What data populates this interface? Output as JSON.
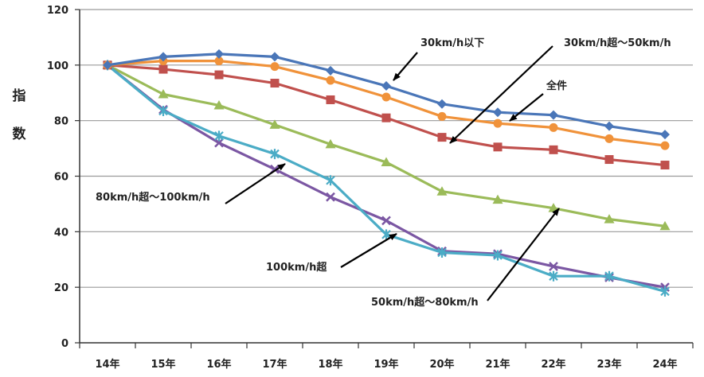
{
  "chart_data": {
    "type": "line",
    "title": "",
    "xlabel": "",
    "ylabel_chars": [
      "指",
      "数"
    ],
    "categories": [
      "14年",
      "15年",
      "16年",
      "17年",
      "18年",
      "19年",
      "20年",
      "21年",
      "22年",
      "23年",
      "24年"
    ],
    "y_ticks": [
      "0",
      "20",
      "40",
      "60",
      "80",
      "100",
      "120"
    ],
    "ylim": [
      0,
      120
    ],
    "grid": true,
    "series": [
      {
        "name": "30km/h以下",
        "color": "#4a76b8",
        "marker": "diamond",
        "values": [
          100,
          103,
          104,
          103,
          98,
          92.5,
          86,
          83,
          82,
          78,
          75
        ]
      },
      {
        "name": "全件",
        "color": "#f0923a",
        "marker": "circle",
        "values": [
          100,
          101.5,
          101.5,
          99.5,
          94.5,
          88.5,
          81.5,
          79,
          77.5,
          73.5,
          71
        ]
      },
      {
        "name": "30km/h超～50km/h",
        "color": "#c0504d",
        "marker": "square",
        "values": [
          100,
          98.5,
          96.5,
          93.5,
          87.5,
          81,
          74,
          70.5,
          69.5,
          66,
          64
        ]
      },
      {
        "name": "50km/h超～80km/h",
        "color": "#9bbb59",
        "marker": "triangle",
        "values": [
          100,
          89.5,
          85.5,
          78.5,
          71.5,
          65,
          54.5,
          51.5,
          48.5,
          44.5,
          42
        ]
      },
      {
        "name": "80km/h超～100km/h",
        "color": "#7b57a3",
        "marker": "x",
        "values": [
          100,
          84,
          72,
          62.5,
          52.5,
          44,
          33,
          32,
          27.5,
          23.5,
          20
        ]
      },
      {
        "name": "100km/h超",
        "color": "#4bacc6",
        "marker": "star",
        "values": [
          100,
          83.5,
          74.5,
          68,
          58.5,
          39,
          32.5,
          31.5,
          24,
          24,
          18.5
        ]
      }
    ],
    "annotations": [
      {
        "text": "30km/h以下",
        "series": 0
      },
      {
        "text": "30km/h超～50km/h",
        "series": 2
      },
      {
        "text": "全件",
        "series": 1
      },
      {
        "text": "80km/h超～100km/h",
        "series": 4
      },
      {
        "text": "100km/h超",
        "series": 5
      },
      {
        "text": "50km/h超～80km/h",
        "series": 3
      }
    ]
  }
}
